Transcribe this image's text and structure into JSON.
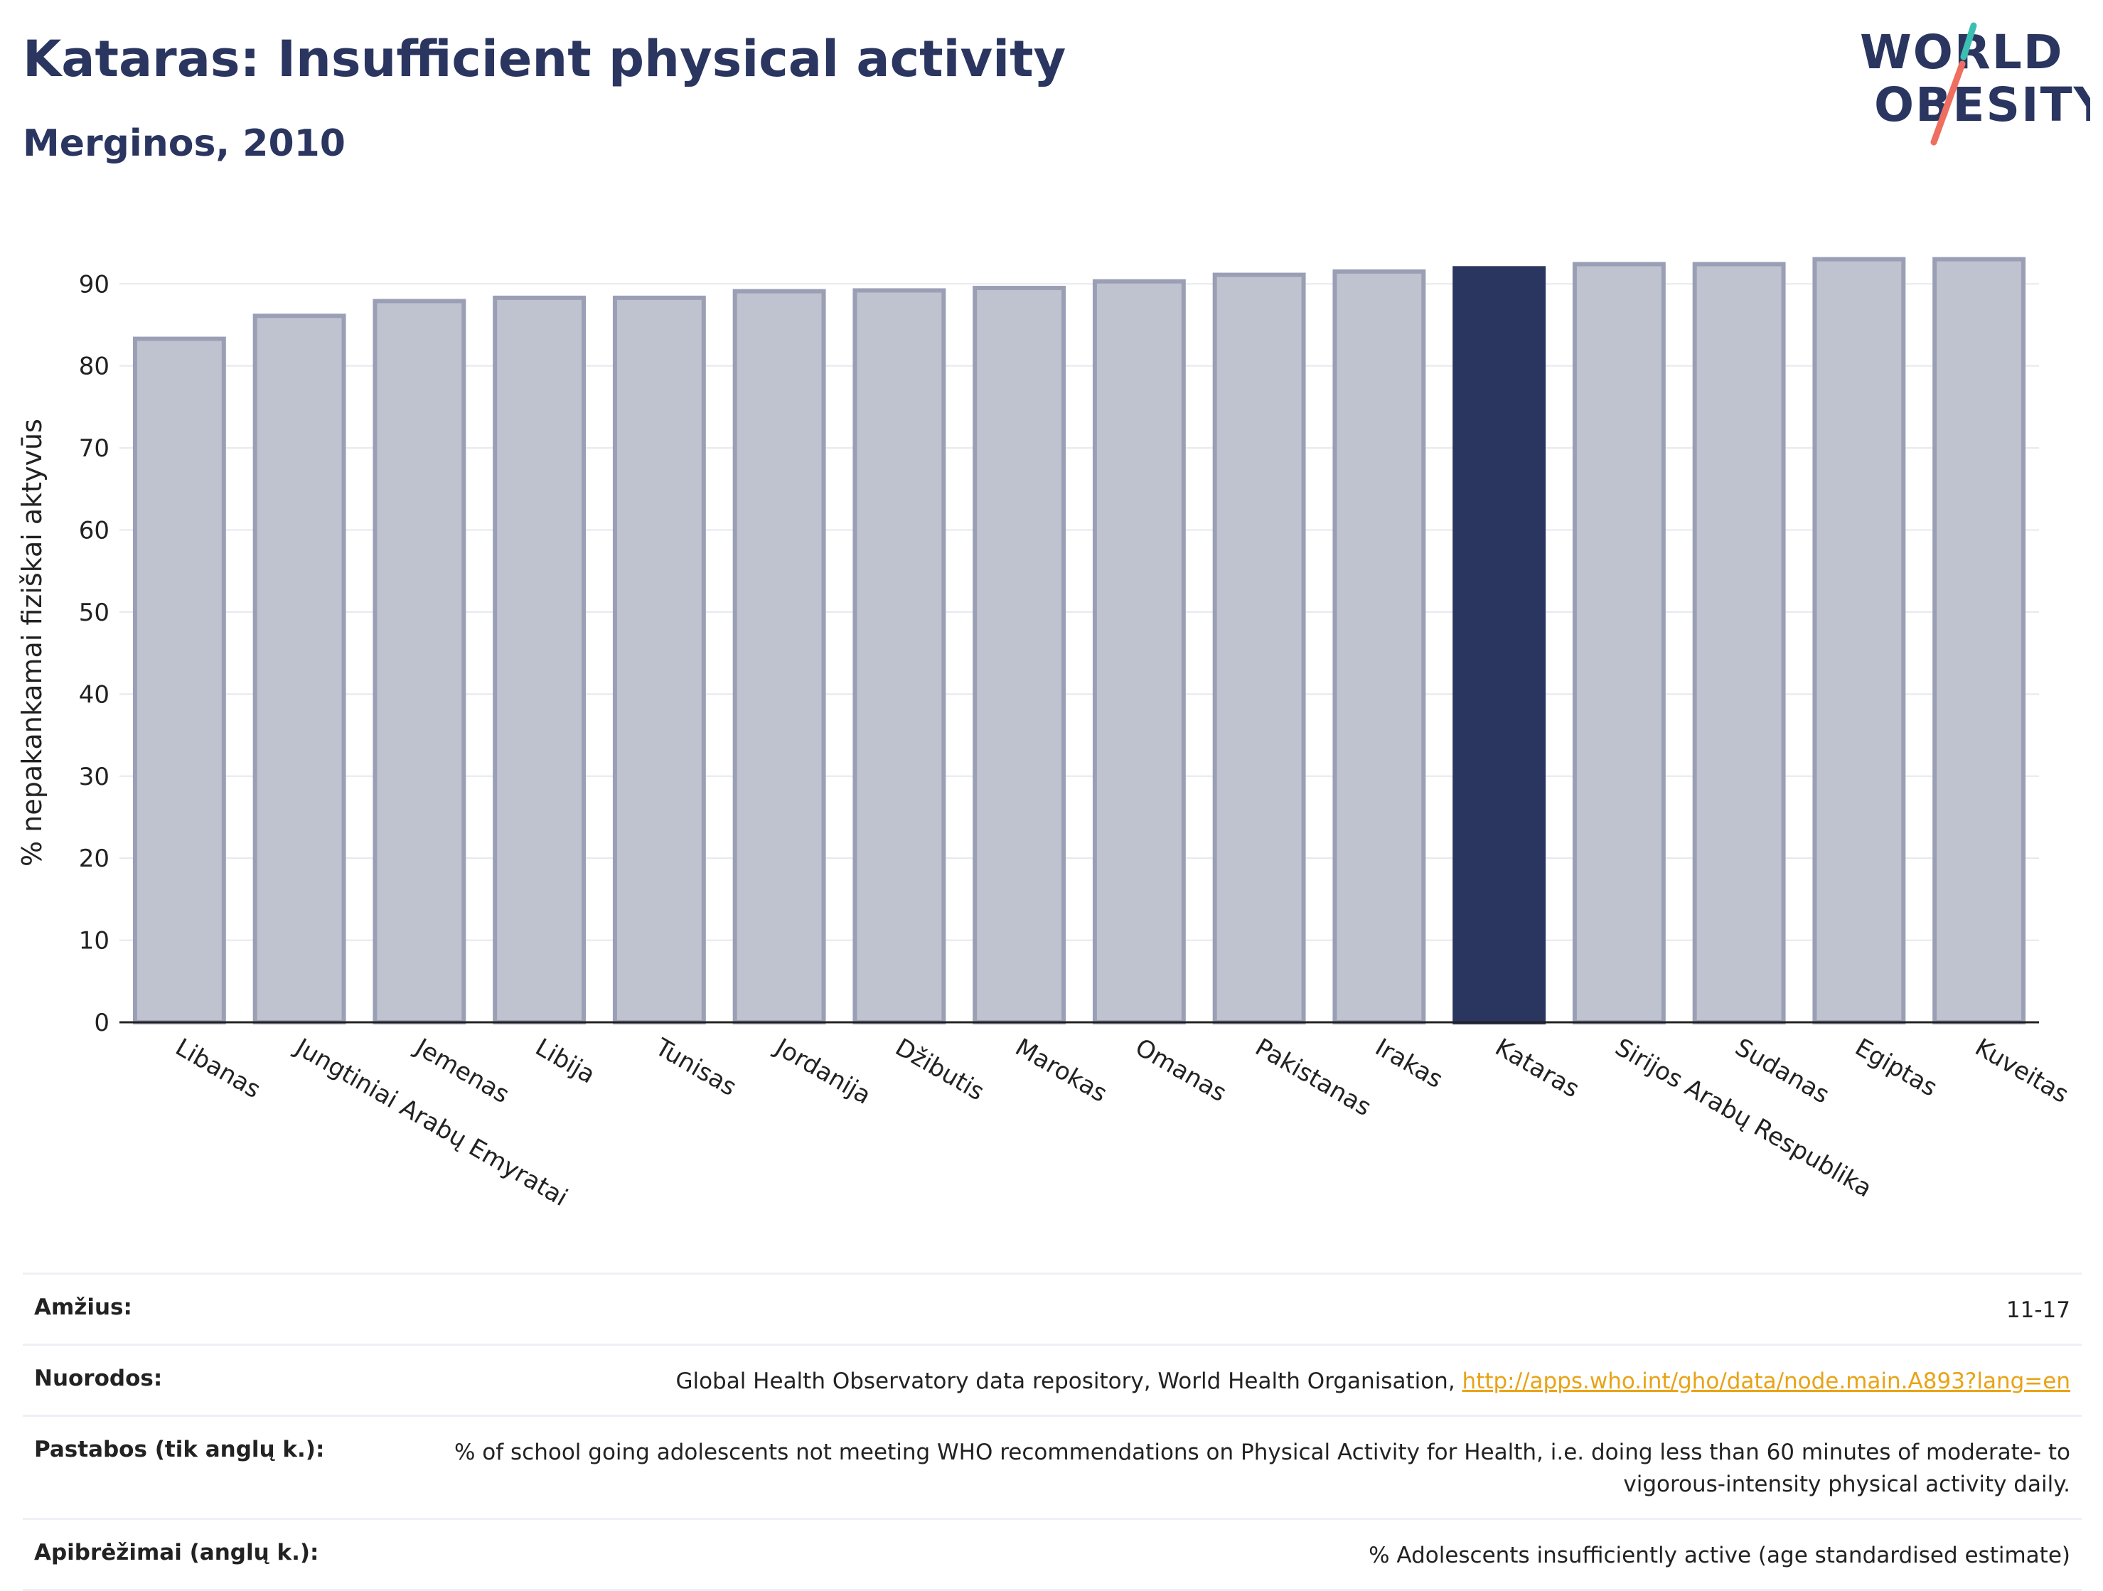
{
  "header": {
    "title": "Kataras: Insufficient physical activity",
    "subtitle": "Merginos, 2010"
  },
  "logo": {
    "line1": "WORLD",
    "line2": "OBESITY"
  },
  "colors": {
    "bar": "#bfc2cf",
    "bar_stroke": "#9a9fb5",
    "highlight": "#2a3560",
    "grid": "#e6e8ee"
  },
  "chart_data": {
    "type": "bar",
    "title": "Kataras: Insufficient physical activity",
    "subtitle": "Merginos, 2010",
    "xlabel": "",
    "ylabel": "% nepakankamai fiziškai aktyvūs",
    "ylim": [
      0,
      96
    ],
    "yticks": [
      0,
      10,
      20,
      30,
      40,
      50,
      60,
      70,
      80,
      90
    ],
    "grid": true,
    "highlight": "Kataras",
    "categories": [
      "Libanas",
      "Jungtiniai Arabų Emyratai",
      "Jemenas",
      "Libija",
      "Tunisas",
      "Jordanija",
      "Džibutis",
      "Marokas",
      "Omanas",
      "Pakistanas",
      "Irakas",
      "Kataras",
      "Sirijos Arabų Respublika",
      "Sudanas",
      "Egiptas",
      "Kuveitas"
    ],
    "values": [
      83.3,
      86.1,
      87.9,
      88.3,
      88.3,
      89.1,
      89.2,
      89.5,
      90.3,
      91.1,
      91.5,
      91.9,
      92.4,
      92.4,
      93.0,
      93.0
    ]
  },
  "meta": {
    "rows": [
      {
        "label": "Amžius:",
        "value": "11-17"
      },
      {
        "label": "Nuorodos:",
        "value": "Global Health Observatory data repository, World Health Organisation, ",
        "link": "http://apps.who.int/gho/data/node.main.A893?lang=en"
      },
      {
        "label": "Pastabos (tik anglų k.):",
        "value": "% of school going adolescents not meeting WHO recommendations on Physical Activity for Health, i.e. doing less than 60 minutes of moderate- to vigorous-intensity physical activity daily."
      },
      {
        "label": "Apibrėžimai (anglų k.):",
        "value": "% Adolescents insufficiently active (age standardised estimate)"
      }
    ]
  }
}
